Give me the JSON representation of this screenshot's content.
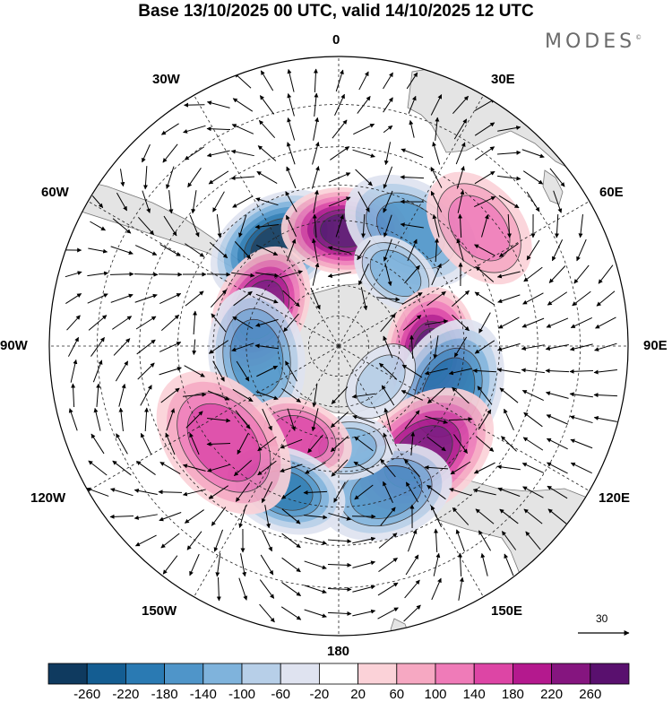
{
  "title": "Base 13/10/2025 00 UTC, valid 14/10/2025 12 UTC",
  "brand": "MODES",
  "brand_mark": "©",
  "longitude_labels": {
    "deg0": "0",
    "deg30e": "30E",
    "deg60e": "60E",
    "deg90e": "90E",
    "deg120e": "120E",
    "deg150e": "150E",
    "deg180": "180",
    "deg150w": "150W",
    "deg120w": "120W",
    "deg90w": "90W",
    "deg60w": "60W",
    "deg30w": "30W"
  },
  "vector_reference": {
    "value": "30"
  },
  "colorbar": {
    "ticks": [
      "-260",
      "-220",
      "-180",
      "-140",
      "-100",
      "-60",
      "-20",
      "20",
      "60",
      "100",
      "140",
      "180",
      "220",
      "260"
    ],
    "colors": [
      "#0f3a5f",
      "#145d92",
      "#2a7ab3",
      "#4f95c9",
      "#7fb3dc",
      "#b7cfe8",
      "#dfe3f0",
      "#ffffff",
      "#fbd2d8",
      "#f6a8c2",
      "#ef7bb8",
      "#dd45a5",
      "#b4198e",
      "#85157f",
      "#59106e"
    ]
  },
  "colors": {
    "land": "#e4e4e4",
    "ocean": "#ffffff",
    "grid": "#222222"
  },
  "anomaly_features": [
    {
      "id": "low-south-atlantic",
      "sign": "negative",
      "lat": -52,
      "lon": -32,
      "amplitude": 260,
      "spread": 11
    },
    {
      "id": "high-south-atlantic",
      "sign": "positive",
      "lat": -53,
      "lon": 3,
      "amplitude": 260,
      "spread": 10
    },
    {
      "id": "high-weddell",
      "sign": "positive",
      "lat": -62,
      "lon": -65,
      "amplitude": 250,
      "spread": 11
    },
    {
      "id": "low-bellingshausen",
      "sign": "negative",
      "lat": -63,
      "lon": -98,
      "amplitude": 170,
      "spread": 12
    },
    {
      "id": "low-southwest-indian",
      "sign": "negative",
      "lat": -47,
      "lon": 32,
      "amplitude": 160,
      "spread": 11
    },
    {
      "id": "high-south-indian",
      "sign": "positive",
      "lat": -34,
      "lon": 50,
      "amplitude": 120,
      "spread": 9
    },
    {
      "id": "low-east-indian-polar",
      "sign": "negative",
      "lat": -60,
      "lon": 38,
      "amplitude": 130,
      "spread": 8
    },
    {
      "id": "high-south-indian-east",
      "sign": "positive",
      "lat": -60,
      "lon": 95,
      "amplitude": 260,
      "spread": 11
    },
    {
      "id": "low-south-australia",
      "sign": "negative",
      "lat": -52,
      "lon": 113,
      "amplitude": 200,
      "spread": 12
    },
    {
      "id": "high-tasman",
      "sign": "positive",
      "lat": -47,
      "lon": 142,
      "amplitude": 230,
      "spread": 12
    },
    {
      "id": "low-southwest-pacific",
      "sign": "negative",
      "lat": -42,
      "lon": 162,
      "amplitude": 170,
      "spread": 10
    },
    {
      "id": "low-south-pacific-central",
      "sign": "negative",
      "lat": -57,
      "lon": 175,
      "amplitude": 130,
      "spread": 8
    },
    {
      "id": "high-south-pacific",
      "sign": "positive",
      "lat": -58,
      "lon": -157,
      "amplitude": 170,
      "spread": 9
    },
    {
      "id": "low-south-pacific-east",
      "sign": "negative",
      "lat": -42,
      "lon": -160,
      "amplitude": 190,
      "spread": 9
    },
    {
      "id": "high-southeast-pacific",
      "sign": "positive",
      "lat": -43,
      "lon": -130,
      "amplitude": 170,
      "spread": 12
    },
    {
      "id": "low-antarctic-coast",
      "sign": "negative",
      "lat": -72,
      "lon": 130,
      "amplitude": 80,
      "spread": 8
    }
  ]
}
